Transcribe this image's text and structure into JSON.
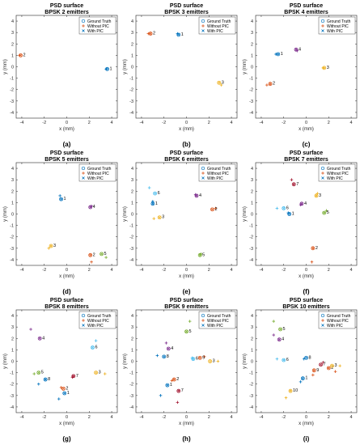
{
  "legend": {
    "entries": [
      "Ground Truth",
      "Without PIC",
      "With PIC"
    ],
    "colors": {
      "ground_truth": "#0072BD",
      "without_pic": "#D95319",
      "with_pic": "#0072BD"
    }
  },
  "series_colors": [
    "#0072BD",
    "#D95319",
    "#EDB120",
    "#7E2F8E",
    "#77AC30",
    "#4DBEEE",
    "#A2142F",
    "#0072BD",
    "#D95319",
    "#EDB120"
  ],
  "chart_data": [
    {
      "type": "scatter",
      "title": "PSD surface",
      "subtitle": "BPSK 2 emitters",
      "xlabel": "x (mm)",
      "ylabel": "y (mm)",
      "xlim": [
        -4.5,
        4.5
      ],
      "ylim": [
        -4.5,
        4.5
      ],
      "xticks": [
        -4,
        -2,
        0,
        2,
        4
      ],
      "yticks": [
        -4,
        -3,
        -2,
        -1,
        0,
        1,
        2,
        3,
        4
      ],
      "grid": false,
      "legend_position": "top-right",
      "panel_label": "(a)",
      "emitters": [
        {
          "label": "1",
          "gt": [
            3.6,
            -0.2
          ],
          "without_pic": [
            3.5,
            -0.2
          ],
          "with_pic": [
            3.6,
            -0.2
          ]
        },
        {
          "label": "2",
          "gt": [
            -4.1,
            1.0
          ],
          "without_pic": [
            -4.2,
            1.0
          ],
          "with_pic": [
            -4.1,
            1.0
          ]
        }
      ]
    },
    {
      "type": "scatter",
      "title": "PSD surface",
      "subtitle": "BPSK 3 emitters",
      "xlabel": "x (mm)",
      "ylabel": "y (mm)",
      "xlim": [
        -4.5,
        4.5
      ],
      "ylim": [
        -4.5,
        4.5
      ],
      "xticks": [
        -4,
        -2,
        0,
        2,
        4
      ],
      "yticks": [
        -4,
        -3,
        -2,
        -1,
        0,
        1,
        2,
        3,
        4
      ],
      "grid": false,
      "legend_position": "top-right",
      "panel_label": "(b)",
      "emitters": [
        {
          "label": "1",
          "gt": [
            -0.7,
            2.8
          ],
          "without_pic": [
            -0.8,
            2.9
          ],
          "with_pic": [
            -0.7,
            2.8
          ]
        },
        {
          "label": "2",
          "gt": [
            -3.2,
            2.9
          ],
          "without_pic": [
            -3.4,
            2.9
          ],
          "with_pic": [
            -3.2,
            2.9
          ]
        },
        {
          "label": "3",
          "gt": [
            2.9,
            -1.4
          ],
          "without_pic": [
            3.1,
            -1.6
          ],
          "with_pic": [
            2.9,
            -1.4
          ]
        }
      ]
    },
    {
      "type": "scatter",
      "title": "PSD surface",
      "subtitle": "BPSK 4 emitters",
      "xlabel": "x (mm)",
      "ylabel": "y (mm)",
      "xlim": [
        -4.5,
        4.5
      ],
      "ylim": [
        -4.5,
        4.5
      ],
      "xticks": [
        -4,
        -2,
        0,
        2,
        4
      ],
      "yticks": [
        -4,
        -3,
        -2,
        -1,
        0,
        1,
        2,
        3,
        4
      ],
      "grid": false,
      "legend_position": "top-right",
      "panel_label": "(c)",
      "emitters": [
        {
          "label": "1",
          "gt": [
            -2.5,
            1.1
          ],
          "without_pic": [
            -2.7,
            1.1
          ],
          "with_pic": [
            -2.5,
            1.1
          ]
        },
        {
          "label": "2",
          "gt": [
            -3.2,
            -1.5
          ],
          "without_pic": [
            -3.5,
            -1.6
          ],
          "with_pic": [
            -3.2,
            -1.5
          ]
        },
        {
          "label": "3",
          "gt": [
            1.6,
            -0.1
          ],
          "without_pic": [
            1.5,
            -0.1
          ],
          "with_pic": [
            1.6,
            -0.1
          ]
        },
        {
          "label": "4",
          "gt": [
            -0.9,
            1.5
          ],
          "without_pic": [
            -0.8,
            1.4
          ],
          "with_pic": [
            -0.9,
            1.5
          ]
        }
      ]
    },
    {
      "type": "scatter",
      "title": "PSD surface",
      "subtitle": "BPSK 5 emitters",
      "xlabel": "x (mm)",
      "ylabel": "y (mm)",
      "xlim": [
        -4.5,
        4.5
      ],
      "ylim": [
        -4.5,
        4.5
      ],
      "xticks": [
        -4,
        -2,
        0,
        2,
        4
      ],
      "yticks": [
        -4,
        -3,
        -2,
        -1,
        0,
        1,
        2,
        3,
        4
      ],
      "grid": false,
      "legend_position": "top-right",
      "panel_label": "(d)",
      "emitters": [
        {
          "label": "1",
          "gt": [
            -0.5,
            1.3
          ],
          "without_pic": [
            -0.6,
            1.6
          ],
          "with_pic": [
            -0.5,
            1.3
          ]
        },
        {
          "label": "2",
          "gt": [
            2.1,
            -3.6
          ],
          "without_pic": [
            2.2,
            -4.2
          ],
          "with_pic": [
            2.1,
            -3.6
          ]
        },
        {
          "label": "3",
          "gt": [
            -1.4,
            -2.8
          ],
          "without_pic": [
            -1.6,
            -3.0
          ],
          "with_pic": [
            -1.4,
            -2.8
          ]
        },
        {
          "label": "4",
          "gt": [
            2.1,
            0.6
          ],
          "without_pic": [
            2.2,
            0.7
          ],
          "with_pic": [
            2.1,
            0.6
          ]
        },
        {
          "label": "5",
          "gt": [
            3.1,
            -3.5
          ],
          "without_pic": [
            3.5,
            -3.8
          ],
          "with_pic": [
            3.1,
            -3.5
          ]
        }
      ]
    },
    {
      "type": "scatter",
      "title": "PSD surface",
      "subtitle": "BPSK 6 emitters",
      "xlabel": "x (mm)",
      "ylabel": "y (mm)",
      "xlim": [
        -4.5,
        4.5
      ],
      "ylim": [
        -4.5,
        4.5
      ],
      "xticks": [
        -4,
        -2,
        0,
        2,
        4
      ],
      "yticks": [
        -4,
        -3,
        -2,
        -1,
        0,
        1,
        2,
        3,
        4
      ],
      "grid": false,
      "legend_position": "top-right",
      "panel_label": "(e)",
      "emitters": [
        {
          "label": "1",
          "gt": [
            -3.0,
            0.9
          ],
          "without_pic": [
            -3.0,
            1.1
          ],
          "with_pic": [
            -3.0,
            0.9
          ]
        },
        {
          "label": "2",
          "gt": [
            2.3,
            0.4
          ],
          "without_pic": [
            2.6,
            0.5
          ],
          "with_pic": [
            2.3,
            0.4
          ]
        },
        {
          "label": "3",
          "gt": [
            -2.4,
            -0.3
          ],
          "without_pic": [
            -2.9,
            -0.4
          ],
          "with_pic": [
            -2.4,
            -0.3
          ]
        },
        {
          "label": "4",
          "gt": [
            0.9,
            1.6
          ],
          "without_pic": [
            0.8,
            1.7
          ],
          "with_pic": [
            0.9,
            1.6
          ]
        },
        {
          "label": "5",
          "gt": [
            1.2,
            -3.6
          ],
          "without_pic": [
            1.3,
            -3.5
          ],
          "with_pic": [
            1.2,
            -3.6
          ]
        },
        {
          "label": "6",
          "gt": [
            -2.8,
            1.8
          ],
          "without_pic": [
            -3.3,
            2.3
          ],
          "with_pic": [
            -2.8,
            1.8
          ]
        }
      ]
    },
    {
      "type": "scatter",
      "title": "PSD surface",
      "subtitle": "BPSK 7 emitters",
      "xlabel": "x (mm)",
      "ylabel": "y (mm)",
      "xlim": [
        -4.5,
        4.5
      ],
      "ylim": [
        -4.5,
        4.5
      ],
      "xticks": [
        -4,
        -2,
        0,
        2,
        4
      ],
      "yticks": [
        -4,
        -3,
        -2,
        -1,
        0,
        1,
        2,
        3,
        4
      ],
      "grid": false,
      "legend_position": "top-right",
      "panel_label": "(f)",
      "emitters": [
        {
          "label": "1",
          "gt": [
            -1.5,
            0.0
          ],
          "without_pic": [
            -1.6,
            0.1
          ],
          "with_pic": [
            -1.5,
            0.0
          ]
        },
        {
          "label": "2",
          "gt": [
            0.6,
            -3.0
          ],
          "without_pic": [
            0.5,
            -4.2
          ],
          "with_pic": [
            0.6,
            -3.0
          ]
        },
        {
          "label": "3",
          "gt": [
            0.9,
            1.6
          ],
          "without_pic": [
            1.0,
            1.8
          ],
          "with_pic": [
            0.9,
            1.6
          ]
        },
        {
          "label": "4",
          "gt": [
            -0.4,
            0.9
          ],
          "without_pic": [
            -0.5,
            0.8
          ],
          "with_pic": [
            -0.4,
            0.9
          ]
        },
        {
          "label": "5",
          "gt": [
            1.6,
            0.1
          ],
          "without_pic": [
            1.8,
            0.3
          ],
          "with_pic": [
            1.6,
            0.1
          ]
        },
        {
          "label": "6",
          "gt": [
            -2.0,
            0.5
          ],
          "without_pic": [
            -2.6,
            0.5
          ],
          "with_pic": [
            -2.0,
            0.5
          ]
        },
        {
          "label": "7",
          "gt": [
            -1.1,
            2.6
          ],
          "without_pic": [
            -1.3,
            3.0
          ],
          "with_pic": [
            -1.1,
            2.6
          ]
        }
      ]
    },
    {
      "type": "scatter",
      "title": "PSD surface",
      "subtitle": "BPSK 8 emitters",
      "xlabel": "x (mm)",
      "ylabel": "y (mm)",
      "xlim": [
        -4.5,
        4.5
      ],
      "ylim": [
        -4.5,
        4.5
      ],
      "xticks": [
        -4,
        -2,
        0,
        2,
        4
      ],
      "yticks": [
        -4,
        -3,
        -2,
        -1,
        0,
        1,
        2,
        3,
        4
      ],
      "grid": false,
      "legend_position": "top-right",
      "panel_label": "(g)",
      "emitters": [
        {
          "label": "1",
          "gt": [
            -0.2,
            -2.8
          ],
          "without_pic": [
            -0.7,
            -3.3
          ],
          "with_pic": [
            -0.2,
            -2.8
          ]
        },
        {
          "label": "2",
          "gt": [
            -0.3,
            -2.4
          ],
          "without_pic": [
            -0.5,
            -2.3
          ],
          "with_pic": [
            -0.3,
            -2.4
          ]
        },
        {
          "label": "3",
          "gt": [
            2.6,
            -1.0
          ],
          "without_pic": [
            3.4,
            -1.1
          ],
          "with_pic": [
            2.6,
            -1.0
          ]
        },
        {
          "label": "4",
          "gt": [
            -2.4,
            2.0
          ],
          "without_pic": [
            -3.2,
            2.8
          ],
          "with_pic": [
            -2.4,
            2.0
          ]
        },
        {
          "label": "5",
          "gt": [
            -2.5,
            -1.0
          ],
          "without_pic": [
            -2.9,
            -1.1
          ],
          "with_pic": [
            -2.5,
            -1.0
          ]
        },
        {
          "label": "6",
          "gt": [
            2.3,
            1.2
          ],
          "without_pic": [
            2.6,
            1.8
          ],
          "with_pic": [
            2.3,
            1.2
          ]
        },
        {
          "label": "7",
          "gt": [
            0.6,
            -1.3
          ],
          "without_pic": [
            0.5,
            -1.4
          ],
          "with_pic": [
            0.6,
            -1.3
          ]
        },
        {
          "label": "8",
          "gt": [
            -1.9,
            -1.6
          ],
          "without_pic": [
            -2.5,
            -2.0
          ],
          "with_pic": [
            -1.9,
            -1.6
          ]
        }
      ]
    },
    {
      "type": "scatter",
      "title": "PSD surface",
      "subtitle": "BPSK 9 emitters",
      "xlabel": "x (mm)",
      "ylabel": "y (mm)",
      "xlim": [
        -4.5,
        4.5
      ],
      "ylim": [
        -4.5,
        4.5
      ],
      "xticks": [
        -4,
        -2,
        0,
        2,
        4
      ],
      "yticks": [
        -4,
        -3,
        -2,
        -1,
        0,
        1,
        2,
        3,
        4
      ],
      "grid": false,
      "legend_position": "top-right",
      "panel_label": "(h)",
      "emitters": [
        {
          "label": "1",
          "gt": [
            -1.7,
            -2.1
          ],
          "without_pic": [
            -2.3,
            -3.0
          ],
          "with_pic": [
            -1.7,
            -2.1
          ]
        },
        {
          "label": "2",
          "gt": [
            -1.1,
            -1.6
          ],
          "without_pic": [
            -1.3,
            -1.7
          ],
          "with_pic": [
            -1.1,
            -1.6
          ]
        },
        {
          "label": "3",
          "gt": [
            2.1,
            0.0
          ],
          "without_pic": [
            2.8,
            0.0
          ],
          "with_pic": [
            2.1,
            0.0
          ]
        },
        {
          "label": "4",
          "gt": [
            -1.6,
            1.1
          ],
          "without_pic": [
            -1.8,
            1.6
          ],
          "with_pic": [
            -1.6,
            1.1
          ]
        },
        {
          "label": "5",
          "gt": [
            0.0,
            2.6
          ],
          "without_pic": [
            0.3,
            3.5
          ],
          "with_pic": [
            0.0,
            2.6
          ]
        },
        {
          "label": "6",
          "gt": [
            0.6,
            0.2
          ],
          "without_pic": [
            0.5,
            0.3
          ],
          "with_pic": [
            0.6,
            0.2
          ]
        },
        {
          "label": "7",
          "gt": [
            -0.7,
            -2.6
          ],
          "without_pic": [
            -0.8,
            -3.6
          ],
          "with_pic": [
            -0.7,
            -2.6
          ]
        },
        {
          "label": "8",
          "gt": [
            -2.0,
            0.4
          ],
          "without_pic": [
            -2.6,
            0.5
          ],
          "with_pic": [
            -2.0,
            0.4
          ]
        },
        {
          "label": "9",
          "gt": [
            1.2,
            0.3
          ],
          "without_pic": [
            1.6,
            0.4
          ],
          "with_pic": [
            1.2,
            0.3
          ]
        }
      ]
    },
    {
      "type": "scatter",
      "title": "PSD surface",
      "subtitle": "BPSK 10 emitters",
      "xlabel": "x (mm)",
      "ylabel": "y (mm)",
      "xlim": [
        -4.5,
        4.5
      ],
      "ylim": [
        -4.5,
        4.5
      ],
      "xticks": [
        -4,
        -2,
        0,
        2,
        4
      ],
      "yticks": [
        -4,
        -3,
        -2,
        -1,
        0,
        1,
        2,
        3,
        4
      ],
      "grid": false,
      "legend_position": "top-right",
      "panel_label": "(i)",
      "emitters": [
        {
          "label": "1",
          "gt": [
            -0.3,
            -1.5
          ],
          "without_pic": [
            -0.5,
            -1.8
          ],
          "with_pic": [
            -0.3,
            -1.5
          ]
        },
        {
          "label": "2",
          "gt": [
            2.0,
            -0.6
          ],
          "without_pic": [
            2.6,
            -0.9
          ],
          "with_pic": [
            2.0,
            -0.6
          ]
        },
        {
          "label": "3",
          "gt": [
            2.3,
            -0.4
          ],
          "without_pic": [
            3.0,
            -0.4
          ],
          "with_pic": [
            2.3,
            -0.4
          ]
        },
        {
          "label": "4",
          "gt": [
            -2.4,
            1.9
          ],
          "without_pic": [
            -2.9,
            2.3
          ],
          "with_pic": [
            -2.4,
            1.9
          ]
        },
        {
          "label": "5",
          "gt": [
            -2.3,
            2.8
          ],
          "without_pic": [
            -2.9,
            3.5
          ],
          "with_pic": [
            -2.3,
            2.8
          ]
        },
        {
          "label": "6",
          "gt": [
            -2.0,
            0.1
          ],
          "without_pic": [
            -2.6,
            0.2
          ],
          "with_pic": [
            -2.0,
            0.1
          ]
        },
        {
          "label": "7",
          "gt": [
            1.3,
            -0.3
          ],
          "without_pic": [
            1.5,
            -0.1
          ],
          "with_pic": [
            1.3,
            -0.3
          ]
        },
        {
          "label": "8",
          "gt": [
            0.0,
            0.3
          ],
          "without_pic": [
            -0.2,
            0.2
          ],
          "with_pic": [
            0.0,
            0.3
          ]
        },
        {
          "label": "9",
          "gt": [
            0.7,
            -0.8
          ],
          "without_pic": [
            0.6,
            -1.2
          ],
          "with_pic": [
            0.7,
            -0.8
          ]
        },
        {
          "label": "10",
          "gt": [
            -1.4,
            -2.6
          ],
          "without_pic": [
            -1.8,
            -3.2
          ],
          "with_pic": [
            -1.4,
            -2.6
          ]
        }
      ]
    }
  ]
}
